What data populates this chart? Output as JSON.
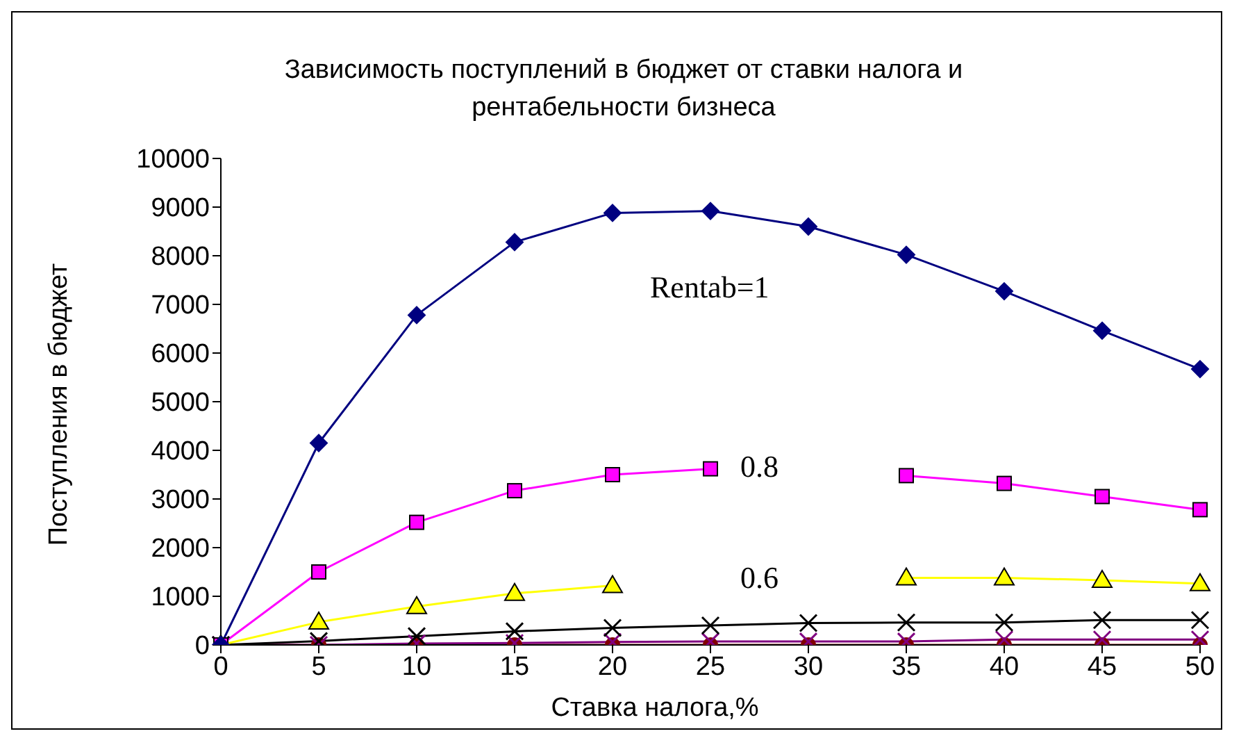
{
  "chart_data": {
    "type": "line",
    "title": "Зависимость поступлений в бюджет от ставки налога и рентабельности бизнеса",
    "xlabel": "Ставка налога,%",
    "ylabel": "Поступления в бюджет",
    "categories": [
      "0",
      "5",
      "10",
      "15",
      "20",
      "25",
      "30",
      "35",
      "40",
      "45",
      "50"
    ],
    "ylim": [
      0,
      10000
    ],
    "yticks": [
      0,
      1000,
      2000,
      3000,
      4000,
      5000,
      6000,
      7000,
      8000,
      9000,
      10000
    ],
    "grid": false,
    "legend": false,
    "series": [
      {
        "color": "#000080",
        "marker": "diamond",
        "values": [
          0,
          4150,
          6780,
          8280,
          8880,
          8920,
          8600,
          8020,
          7270,
          6460,
          5670
        ]
      },
      {
        "color": "#ff00ff",
        "marker": "square",
        "values": [
          0,
          1500,
          2520,
          3170,
          3500,
          3620,
          null,
          3480,
          3320,
          3050,
          2780
        ]
      },
      {
        "color": "#ffff00",
        "marker": "triangle",
        "values": [
          0,
          470,
          790,
          1060,
          1220,
          null,
          null,
          1380,
          1380,
          1330,
          1260
        ]
      },
      {
        "color": "#000000",
        "marker": "cross",
        "values": [
          0,
          80,
          180,
          280,
          350,
          400,
          450,
          460,
          460,
          510,
          510
        ]
      },
      {
        "color": "#800080",
        "marker": "cross",
        "values": [
          0,
          0,
          30,
          40,
          60,
          70,
          70,
          70,
          110,
          110,
          110
        ]
      },
      {
        "color": "#800000",
        "marker": "circle",
        "values": [
          0,
          0,
          0,
          0,
          0,
          0,
          0,
          0,
          0,
          0,
          0
        ]
      }
    ],
    "annotations": [
      "Rentab=1",
      "0.8",
      "0.6"
    ]
  }
}
